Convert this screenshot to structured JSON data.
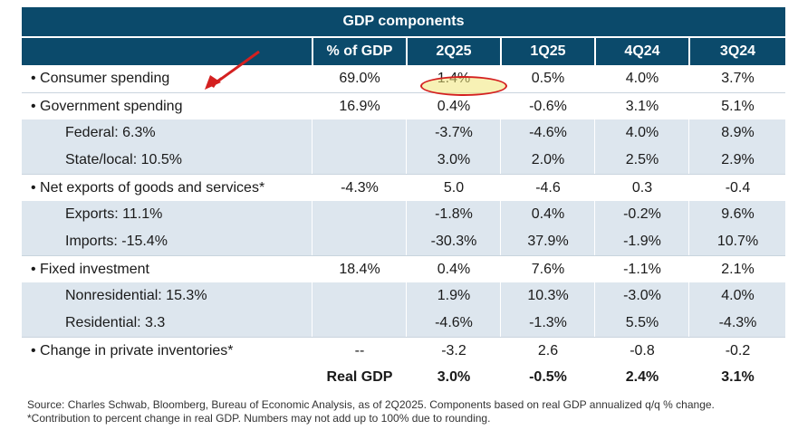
{
  "title": "GDP components",
  "columns": [
    "% of GDP",
    "2Q25",
    "1Q25",
    "4Q24",
    "3Q24"
  ],
  "chart_data": {
    "type": "table",
    "title": "GDP components",
    "columns": [
      "",
      "% of GDP",
      "2Q25",
      "1Q25",
      "4Q24",
      "3Q24"
    ],
    "rows": [
      {
        "label": "• Consumer spending",
        "pct": "69.0%",
        "values": [
          "1.4%",
          "0.5%",
          "4.0%",
          "3.7%"
        ]
      },
      {
        "label": "• Government spending",
        "pct": "16.9%",
        "values": [
          "0.4%",
          "-0.6%",
          "3.1%",
          "5.1%"
        ]
      },
      {
        "label": "Federal: 6.3%",
        "pct": "",
        "values": [
          "-3.7%",
          "-4.6%",
          "4.0%",
          "8.9%"
        ]
      },
      {
        "label": "State/local: 10.5%",
        "pct": "",
        "values": [
          "3.0%",
          "2.0%",
          "2.5%",
          "2.9%"
        ]
      },
      {
        "label": "• Net exports of goods and services*",
        "pct": "-4.3%",
        "values": [
          "5.0",
          "-4.6",
          "0.3",
          "-0.4"
        ]
      },
      {
        "label": "Exports: 11.1%",
        "pct": "",
        "values": [
          "-1.8%",
          "0.4%",
          "-0.2%",
          "9.6%"
        ]
      },
      {
        "label": "Imports: -15.4%",
        "pct": "",
        "values": [
          "-30.3%",
          "37.9%",
          "-1.9%",
          "10.7%"
        ]
      },
      {
        "label": "• Fixed investment",
        "pct": "18.4%",
        "values": [
          "0.4%",
          "7.6%",
          "-1.1%",
          "2.1%"
        ]
      },
      {
        "label": "Nonresidential: 15.3%",
        "pct": "",
        "values": [
          "1.9%",
          "10.3%",
          "-3.0%",
          "4.0%"
        ]
      },
      {
        "label": "Residential: 3.3",
        "pct": "",
        "values": [
          "-4.6%",
          "-1.3%",
          "5.5%",
          "-4.3%"
        ]
      },
      {
        "label": "• Change in private inventories*",
        "pct": "--",
        "values": [
          "-3.2",
          "2.6",
          "-0.8",
          "-0.2"
        ]
      },
      {
        "label": "",
        "pct": "Real GDP",
        "values": [
          "3.0%",
          "-0.5%",
          "2.4%",
          "3.1%"
        ]
      }
    ],
    "highlight": {
      "row": 0,
      "column": "2Q25",
      "value": "1.4%"
    }
  },
  "footnotes": {
    "source": "Source: Charles Schwab, Bloomberg, Bureau of Economic Analysis, as of 2Q2025. Components based on real GDP annualized q/q % change.",
    "note": "*Contribution to percent change in real GDP. Numbers may not add up to 100% due to rounding."
  },
  "colors": {
    "header": "#0b4a6b",
    "shade": "#dde6ee",
    "highlight_border": "#d42020",
    "highlight_fill": "#f0e678"
  }
}
